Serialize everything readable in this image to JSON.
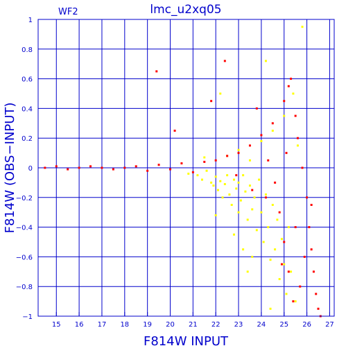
{
  "chart_data": {
    "type": "scatter",
    "title": "lmc_u2xq05",
    "panel_label": "WF2",
    "xlabel": "F814W INPUT",
    "ylabel": "F814W (OBS−INPUT)",
    "xlim": [
      14.2,
      27.2
    ],
    "ylim": [
      -1,
      1
    ],
    "x_ticks": [
      15,
      16,
      17,
      18,
      19,
      20,
      21,
      22,
      23,
      24,
      25,
      26,
      27
    ],
    "x_tick_labels": [
      "15",
      "16",
      "17",
      "18",
      "19",
      "20",
      "21",
      "22",
      "23",
      "24",
      "25",
      "26",
      "27"
    ],
    "y_ticks": [
      -1,
      -0.8,
      -0.6,
      -0.4,
      -0.2,
      0,
      0.2,
      0.4,
      0.6,
      0.8,
      1
    ],
    "y_tick_labels": [
      "−1",
      "−0.8",
      "−0.6",
      "−0.4",
      "−0.2",
      "0",
      "0.2",
      "0.4",
      "0.6",
      "0.8",
      "1"
    ],
    "grid": true,
    "colors": {
      "axes": "#0000cc",
      "grid": "#0000cc",
      "primary": "#ff0000",
      "secondary": "#ffff00"
    },
    "series": [
      {
        "color": "#ffff00",
        "points": [
          [
            20.8,
            -0.04
          ],
          [
            21.2,
            -0.05
          ],
          [
            21.4,
            -0.08
          ],
          [
            21.6,
            -0.02
          ],
          [
            21.8,
            -0.1
          ],
          [
            21.9,
            -0.12
          ],
          [
            22.0,
            -0.06
          ],
          [
            22.1,
            -0.15
          ],
          [
            22.2,
            -0.09
          ],
          [
            22.3,
            -0.2
          ],
          [
            22.4,
            -0.11
          ],
          [
            22.5,
            -0.05
          ],
          [
            22.6,
            -0.18
          ],
          [
            22.7,
            -0.25
          ],
          [
            22.8,
            -0.08
          ],
          [
            22.9,
            -0.14
          ],
          [
            23.0,
            -0.1
          ],
          [
            23.0,
            -0.3
          ],
          [
            23.1,
            -0.22
          ],
          [
            23.2,
            -0.05
          ],
          [
            23.3,
            -0.16
          ],
          [
            23.4,
            -0.35
          ],
          [
            23.5,
            -0.12
          ],
          [
            23.6,
            -0.28
          ],
          [
            23.7,
            -0.2
          ],
          [
            23.8,
            -0.42
          ],
          [
            23.9,
            -0.08
          ],
          [
            24.0,
            -0.3
          ],
          [
            24.1,
            -0.5
          ],
          [
            24.2,
            -0.18
          ],
          [
            24.3,
            -0.4
          ],
          [
            24.4,
            -0.62
          ],
          [
            24.5,
            -0.25
          ],
          [
            24.6,
            -0.55
          ],
          [
            24.7,
            -0.35
          ],
          [
            24.8,
            -0.75
          ],
          [
            24.9,
            -0.48
          ],
          [
            25.0,
            -0.65
          ],
          [
            25.1,
            -0.85
          ],
          [
            25.2,
            -0.4
          ],
          [
            25.3,
            -0.7
          ],
          [
            25.5,
            -0.9
          ],
          [
            22.5,
            0.08
          ],
          [
            23.0,
            0.12
          ],
          [
            23.5,
            0.05
          ],
          [
            24.0,
            0.18
          ],
          [
            24.5,
            0.25
          ],
          [
            25.0,
            0.35
          ],
          [
            25.4,
            0.5
          ],
          [
            25.6,
            0.15
          ],
          [
            22.8,
            -0.45
          ],
          [
            23.2,
            -0.55
          ],
          [
            23.6,
            -0.6
          ],
          [
            21.5,
            0.07
          ],
          [
            22.2,
            0.5
          ],
          [
            24.2,
            0.72
          ],
          [
            25.8,
            0.95
          ],
          [
            24.4,
            -0.95
          ],
          [
            23.4,
            -0.7
          ],
          [
            22.0,
            -0.32
          ]
        ]
      },
      {
        "color": "#ff0000",
        "points": [
          [
            14.5,
            0.0
          ],
          [
            15.0,
            0.01
          ],
          [
            15.5,
            -0.01
          ],
          [
            16.0,
            0.0
          ],
          [
            16.5,
            0.01
          ],
          [
            17.0,
            0.0
          ],
          [
            17.5,
            -0.01
          ],
          [
            18.0,
            0.0
          ],
          [
            18.5,
            0.01
          ],
          [
            19.0,
            -0.02
          ],
          [
            19.5,
            0.02
          ],
          [
            20.0,
            -0.01
          ],
          [
            20.5,
            0.03
          ],
          [
            21.0,
            -0.03
          ],
          [
            21.5,
            0.04
          ],
          [
            22.0,
            0.05
          ],
          [
            22.5,
            0.08
          ],
          [
            23.0,
            0.1
          ],
          [
            23.5,
            0.15
          ],
          [
            24.0,
            0.22
          ],
          [
            24.5,
            0.3
          ],
          [
            25.0,
            0.45
          ],
          [
            25.2,
            0.55
          ],
          [
            25.3,
            0.6
          ],
          [
            25.5,
            0.35
          ],
          [
            25.6,
            0.2
          ],
          [
            25.8,
            0.0
          ],
          [
            26.0,
            -0.2
          ],
          [
            26.1,
            -0.4
          ],
          [
            26.2,
            -0.55
          ],
          [
            26.3,
            -0.7
          ],
          [
            26.4,
            -0.85
          ],
          [
            26.5,
            -0.95
          ],
          [
            26.6,
            -1.0
          ],
          [
            25.9,
            -0.6
          ],
          [
            25.7,
            -0.8
          ],
          [
            25.4,
            -0.9
          ],
          [
            25.2,
            -0.7
          ],
          [
            25.0,
            -0.5
          ],
          [
            24.8,
            -0.3
          ],
          [
            24.6,
            -0.1
          ],
          [
            24.3,
            0.05
          ],
          [
            19.4,
            0.65
          ],
          [
            20.2,
            0.25
          ],
          [
            21.8,
            0.45
          ],
          [
            22.4,
            0.72
          ],
          [
            23.8,
            0.4
          ],
          [
            24.2,
            -0.2
          ],
          [
            23.6,
            -0.15
          ],
          [
            22.9,
            -0.05
          ],
          [
            25.1,
            0.1
          ],
          [
            25.5,
            -0.4
          ],
          [
            26.2,
            -0.25
          ],
          [
            24.9,
            -0.65
          ]
        ]
      }
    ]
  }
}
